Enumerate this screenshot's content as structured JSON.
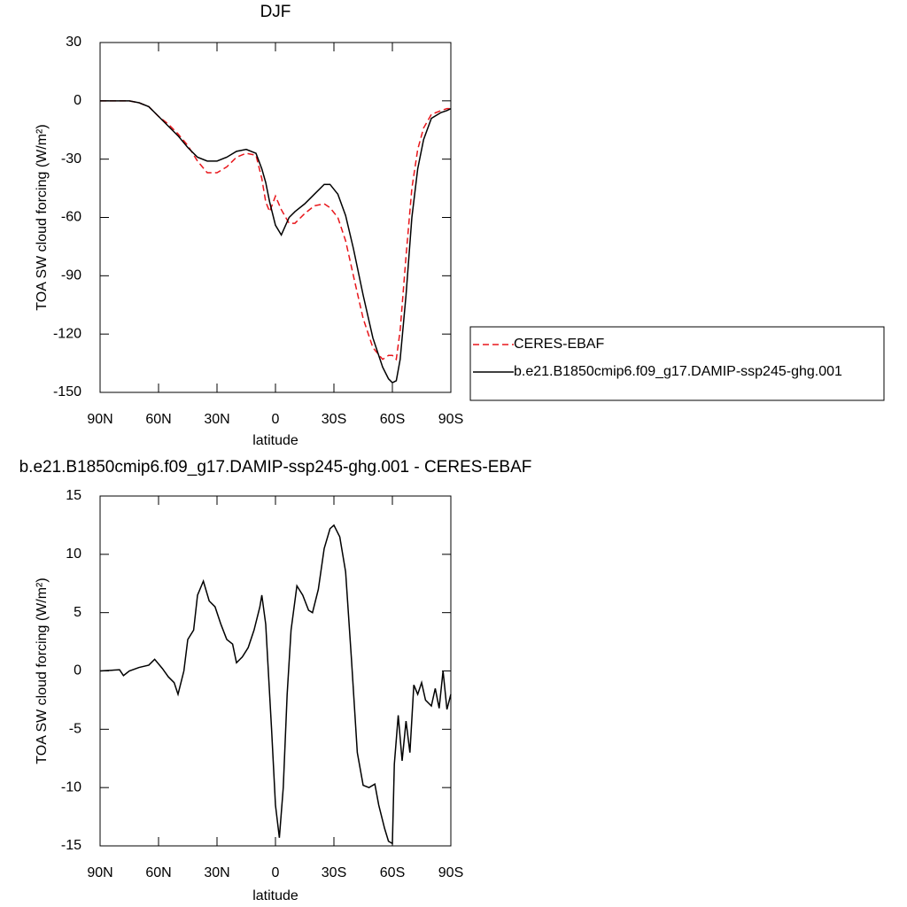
{
  "chart_data": [
    {
      "type": "line",
      "title": "DJF",
      "x_label": "latitude",
      "y_label": "TOA SW cloud forcing (W/m²)",
      "xlim": [
        90,
        -90
      ],
      "xticks": [
        {
          "value": 90,
          "label": "90N"
        },
        {
          "value": 60,
          "label": "60N"
        },
        {
          "value": 30,
          "label": "30N"
        },
        0,
        {
          "value": -30,
          "label": "30S"
        },
        {
          "value": -60,
          "label": "60S"
        },
        {
          "value": -90,
          "label": "90S"
        }
      ],
      "ylim": [
        -150,
        30
      ],
      "yticks": [
        -150,
        -120,
        -90,
        -60,
        -30,
        0,
        30
      ],
      "legend": "right",
      "x": [
        90,
        85,
        80,
        75,
        70,
        65,
        60,
        55,
        50,
        45,
        40,
        35,
        30,
        25,
        20,
        15,
        10,
        7,
        5,
        3,
        0,
        -3,
        -7,
        -10,
        -15,
        -20,
        -25,
        -28,
        -32,
        -36,
        -40,
        -45,
        -50,
        -55,
        -58,
        -60,
        -62,
        -64,
        -67,
        -70,
        -73,
        -76,
        -80,
        -85,
        -88,
        -90
      ],
      "series": [
        {
          "name": "CERES-EBAF",
          "color": "#e8161b",
          "style": "dashed",
          "values": [
            0,
            0,
            0,
            0,
            -1,
            -3,
            -8,
            -12,
            -17,
            -23,
            -31,
            -37,
            -37,
            -34,
            -29,
            -27,
            -28,
            -40,
            -52,
            -57,
            -49,
            -56,
            -63,
            -63,
            -58,
            -54,
            -53,
            -55,
            -60,
            -72,
            -90,
            -112,
            -127,
            -133,
            -131,
            -131,
            -133,
            -118,
            -80,
            -45,
            -25,
            -14,
            -7,
            -5,
            -4,
            -4
          ]
        },
        {
          "name": "b.e21.B1850cmip6.f09_g17.DAMIP-ssp245-ghg.001",
          "color": "#000000",
          "style": "solid",
          "values": [
            0,
            0,
            0,
            0,
            -1,
            -3,
            -8,
            -13,
            -18,
            -24,
            -29,
            -31,
            -31,
            -29,
            -26,
            -25,
            -27,
            -35,
            -42,
            -52,
            -64,
            -69,
            -60,
            -57,
            -53,
            -48,
            -43,
            -43,
            -48,
            -59,
            -76,
            -100,
            -122,
            -137,
            -143,
            -145,
            -144,
            -133,
            -100,
            -60,
            -35,
            -20,
            -9,
            -6,
            -5,
            -4
          ]
        }
      ]
    },
    {
      "type": "line",
      "title": "b.e21.B1850cmip6.f09_g17.DAMIP-ssp245-ghg.001 - CERES-EBAF",
      "x_label": "latitude",
      "y_label": "TOA SW cloud forcing (W/m²)",
      "xlim": [
        90,
        -90
      ],
      "xticks": [
        {
          "value": 90,
          "label": "90N"
        },
        {
          "value": 60,
          "label": "60N"
        },
        {
          "value": 30,
          "label": "30N"
        },
        0,
        {
          "value": -30,
          "label": "30S"
        },
        {
          "value": -60,
          "label": "60S"
        },
        {
          "value": -90,
          "label": "90S"
        }
      ],
      "ylim": [
        -15,
        15
      ],
      "yticks": [
        -15,
        -10,
        -5,
        0,
        5,
        10,
        15
      ],
      "color": "#000000",
      "x": [
        90,
        80,
        78,
        75,
        70,
        65,
        62,
        58,
        55,
        52,
        50,
        47,
        45,
        42,
        40,
        37,
        34,
        31,
        28,
        25,
        22,
        20,
        17,
        14,
        11,
        8,
        7,
        5,
        2,
        0,
        -2,
        -4,
        -6,
        -8,
        -11,
        -14,
        -17,
        -19,
        -22,
        -25,
        -28,
        -30,
        -33,
        -36,
        -39,
        -42,
        -45,
        -48,
        -51,
        -53,
        -56,
        -58,
        -60,
        -61,
        -63,
        -65,
        -67,
        -69,
        -71,
        -73,
        -75,
        -77,
        -80,
        -82,
        -84,
        -86,
        -88,
        -90
      ],
      "values": [
        0,
        0.1,
        -0.4,
        0,
        0.3,
        0.5,
        1.0,
        0.2,
        -0.5,
        -1.0,
        -2.0,
        0,
        2.7,
        3.5,
        6.5,
        7.7,
        6.0,
        5.5,
        4.0,
        2.7,
        2.3,
        0.7,
        1.2,
        2.0,
        3.5,
        5.5,
        6.5,
        4.0,
        -5,
        -11.5,
        -14.3,
        -10,
        -2,
        3.5,
        7.3,
        6.5,
        5.2,
        5.0,
        7.0,
        10.5,
        12.2,
        12.5,
        11.5,
        8.5,
        1.0,
        -7,
        -9.8,
        -10.0,
        -9.7,
        -11.5,
        -13.5,
        -14.6,
        -14.8,
        -8,
        -3.8,
        -7.7,
        -4.3,
        -7.0,
        -1.2,
        -2.0,
        -1.0,
        -2.5,
        -3.0,
        -1.5,
        -3.2,
        0,
        -3.3,
        -2.0
      ]
    }
  ]
}
